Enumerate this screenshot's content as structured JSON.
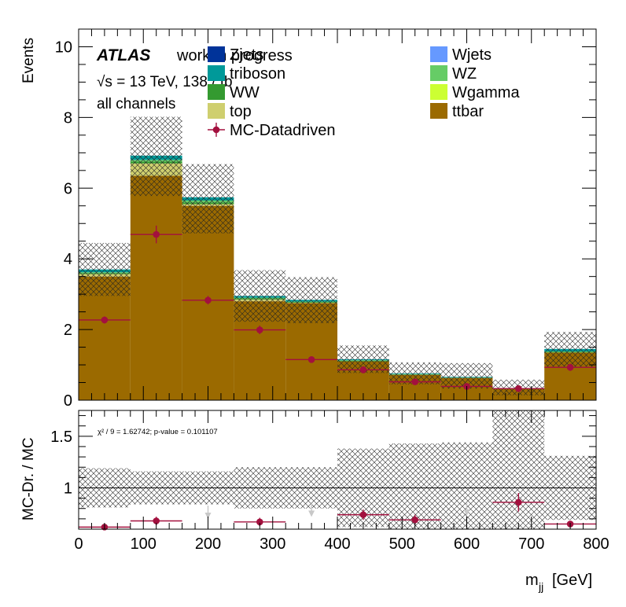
{
  "chart_data": [
    {
      "type": "bar",
      "stacked": true,
      "title": "",
      "xlabel": "m_jj [GeV]",
      "ylabel": "Events",
      "xlim": [
        0,
        800
      ],
      "ylim": [
        0,
        10.5
      ],
      "bin_edges": [
        0,
        80,
        160,
        240,
        320,
        400,
        480,
        560,
        640,
        720,
        800
      ],
      "y_ticks": [
        0,
        2,
        4,
        6,
        8,
        10
      ],
      "series": [
        {
          "name": "ttbar",
          "color": "#9b6a00",
          "values": [
            3.5,
            6.35,
            5.5,
            2.8,
            2.75,
            1.1,
            0.72,
            0.63,
            0.33,
            1.35
          ]
        },
        {
          "name": "top",
          "color": "#cfcf6f",
          "values": [
            0.07,
            0.35,
            0.05,
            0.05,
            0.01,
            0.0,
            0.0,
            0.0,
            0.0,
            0.0
          ]
        },
        {
          "name": "WW",
          "color": "#349a30",
          "values": [
            0.03,
            0.05,
            0.05,
            0.03,
            0.02,
            0.02,
            0.01,
            0.01,
            0.0,
            0.02
          ]
        },
        {
          "name": "Wgamma",
          "color": "#ccff33",
          "values": [
            0.0,
            0.0,
            0.0,
            0.0,
            0.0,
            0.0,
            0.0,
            0.0,
            0.0,
            0.0
          ]
        },
        {
          "name": "WZ",
          "color": "#66cc66",
          "values": [
            0.02,
            0.05,
            0.05,
            0.02,
            0.01,
            0.01,
            0.01,
            0.0,
            0.0,
            0.01
          ]
        },
        {
          "name": "triboson",
          "color": "#009999",
          "values": [
            0.08,
            0.12,
            0.09,
            0.05,
            0.05,
            0.03,
            0.02,
            0.02,
            0.01,
            0.07
          ]
        },
        {
          "name": "Wjets",
          "color": "#6699ff",
          "values": [
            0.0,
            0.0,
            0.0,
            0.0,
            0.0,
            0.0,
            0.0,
            0.0,
            0.0,
            0.0
          ]
        },
        {
          "name": "Zjets",
          "color": "#003399",
          "values": [
            0.0,
            0.0,
            0.0,
            0.0,
            0.0,
            0.0,
            0.0,
            0.0,
            0.0,
            0.0
          ]
        }
      ],
      "uncertainty_band": {
        "upper": [
          4.45,
          8.02,
          6.68,
          3.68,
          3.48,
          1.55,
          1.07,
          1.05,
          0.58,
          1.93
        ],
        "lower": [
          2.95,
          5.78,
          4.72,
          2.22,
          2.18,
          0.77,
          0.45,
          0.33,
          0.14,
          0.95
        ]
      },
      "points": {
        "name": "MC-Datadriven",
        "color": "#a3103e",
        "x": [
          40,
          120,
          200,
          280,
          360,
          440,
          520,
          600,
          680,
          760
        ],
        "y": [
          2.27,
          4.69,
          2.83,
          1.99,
          1.15,
          0.86,
          0.52,
          0.39,
          0.33,
          0.93
        ],
        "yerr": [
          0.1,
          0.25,
          0.12,
          0.12,
          0.05,
          0.1,
          0.06,
          0.05,
          0.05,
          0.1
        ]
      },
      "legend": {
        "col1": [
          "Zjets",
          "triboson",
          "WW",
          "top",
          "MC-Datadriven"
        ],
        "col2": [
          "Wjets",
          "WZ",
          "Wgamma",
          "ttbar"
        ]
      },
      "atlas_label": "ATLAS",
      "atlas_sub": "work in progress",
      "energy_label": "√s = 13 TeV, 138 / fb",
      "channel_label": "all channels"
    },
    {
      "type": "scatter",
      "title": "",
      "xlabel": "m_jj [GeV]",
      "ylabel": "MC-Dr. / MC",
      "xlim": [
        0,
        800
      ],
      "ylim": [
        0.6,
        1.75
      ],
      "x_ticks": [
        0,
        100,
        200,
        300,
        400,
        500,
        600,
        700,
        800
      ],
      "y_ticks": [
        1,
        1.5
      ],
      "reference_line": 1,
      "stat_text": "χ² / 9 = 1.62742; p-value = 0.101107",
      "band": {
        "upper": [
          1.19,
          1.16,
          1.16,
          1.2,
          1.2,
          1.38,
          1.43,
          1.44,
          1.79,
          1.31
        ],
        "lower": [
          0.81,
          0.84,
          0.84,
          0.8,
          0.8,
          0.62,
          0.57,
          0.56,
          0.21,
          0.69
        ]
      },
      "points": {
        "color": "#a3103e",
        "x": [
          40,
          120,
          200,
          280,
          360,
          440,
          520,
          600,
          680,
          760
        ],
        "y": [
          0.62,
          0.68,
          0.76,
          0.67,
          0.78,
          0.74,
          0.69,
          0.79,
          0.86,
          0.65
        ],
        "yerr": [
          0.03,
          0.04,
          0.03,
          0.04,
          0.03,
          0.05,
          0.05,
          0.03,
          0.09,
          0.03
        ],
        "in_range": [
          true,
          true,
          false,
          true,
          false,
          true,
          true,
          false,
          true,
          true
        ]
      }
    }
  ]
}
